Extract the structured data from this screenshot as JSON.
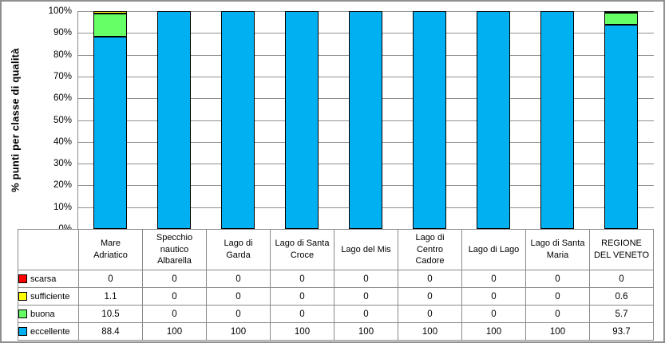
{
  "frame": {
    "background": "#FFFFFF",
    "border_color": "#8F8F8F",
    "grid_color": "#8F8F8F",
    "axis_color": "#8A8A8A",
    "table_border_color": "#8A8A8A"
  },
  "chart_data": {
    "type": "bar",
    "stacked": true,
    "orientation": "vertical",
    "title": "",
    "xlabel": "",
    "ylabel": "% punti per classe di qualità",
    "ylim": [
      0,
      100
    ],
    "ytick_step": 10,
    "ytick_labels": [
      "0%",
      "10%",
      "20%",
      "30%",
      "40%",
      "50%",
      "60%",
      "70%",
      "80%",
      "90%",
      "100%"
    ],
    "grid": true,
    "legend_position": "data-table-left",
    "data_table": true,
    "categories": [
      "Mare Adriatico",
      "Specchio nautico Albarella",
      "Lago di Garda",
      "Lago di Santa Croce",
      "Lago del Mis",
      "Lago di Centro Cadore",
      "Lago di Lago",
      "Lago di Santa Maria",
      "REGIONE DEL VENETO"
    ],
    "category_label_lines": [
      [
        "Mare",
        "Adriatico"
      ],
      [
        "Specchio",
        "nautico",
        "Albarella"
      ],
      [
        "Lago di",
        "Garda"
      ],
      [
        "Lago di Santa",
        "Croce"
      ],
      [
        "Lago del Mis"
      ],
      [
        "Lago di",
        "Centro",
        "Cadore"
      ],
      [
        "Lago di Lago"
      ],
      [
        "Lago di Santa",
        "Maria"
      ],
      [
        "REGIONE",
        "DEL VENETO"
      ]
    ],
    "series": [
      {
        "name": "scarsa",
        "color": "#FF0000",
        "values": [
          0,
          0,
          0,
          0,
          0,
          0,
          0,
          0,
          0
        ]
      },
      {
        "name": "sufficiente",
        "color": "#FFFF00",
        "values": [
          1.1,
          0,
          0,
          0,
          0,
          0,
          0,
          0,
          0.6
        ]
      },
      {
        "name": "buona",
        "color": "#66FF66",
        "values": [
          10.5,
          0,
          0,
          0,
          0,
          0,
          0,
          0,
          5.7
        ]
      },
      {
        "name": "eccellente",
        "color": "#00B0F0",
        "values": [
          88.4,
          100,
          100,
          100,
          100,
          100,
          100,
          100,
          93.7
        ]
      }
    ],
    "stack_order_top_to_bottom": [
      "scarsa",
      "sufficiente",
      "buona",
      "eccellente"
    ]
  }
}
